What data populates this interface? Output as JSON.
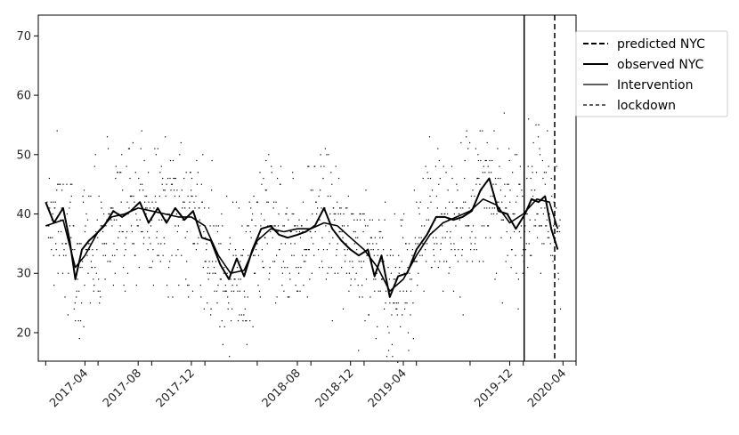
{
  "chart_data": {
    "type": "line",
    "title": "",
    "xlabel": "",
    "ylabel": "",
    "xlim": [
      "2016-12-15",
      "2020-05-01"
    ],
    "ylim": [
      15.2,
      73.5
    ],
    "grid": false,
    "legend_position": "outside-right-top",
    "x_ticks": [
      "2017-04",
      "2017-08",
      "2017-12",
      "2018-08",
      "2018-12",
      "2019-04",
      "2019-12",
      "2020-04"
    ],
    "y_ticks": [
      20,
      30,
      40,
      50,
      60,
      70
    ],
    "vertical_lines": [
      {
        "name": "Intervention",
        "date": "2020-01-03",
        "style": "solid"
      },
      {
        "name": "lockdown",
        "date": "2020-03-13",
        "style": "dashed"
      }
    ],
    "series": [
      {
        "name": "observed NYC",
        "style": "solid-thick",
        "x": [
          "2017-01-01",
          "2017-01-20",
          "2017-02-10",
          "2017-02-25",
          "2017-03-10",
          "2017-03-25",
          "2017-04-10",
          "2017-04-25",
          "2017-05-15",
          "2017-06-05",
          "2017-06-25",
          "2017-07-15",
          "2017-08-05",
          "2017-08-25",
          "2017-09-15",
          "2017-10-05",
          "2017-10-25",
          "2017-11-15",
          "2017-12-05",
          "2017-12-25",
          "2018-01-15",
          "2018-02-05",
          "2018-02-25",
          "2018-03-15",
          "2018-04-01",
          "2018-04-20",
          "2018-05-10",
          "2018-06-01",
          "2018-06-20",
          "2018-07-10",
          "2018-08-01",
          "2018-08-20",
          "2018-09-10",
          "2018-10-01",
          "2018-10-20",
          "2018-11-10",
          "2018-12-01",
          "2018-12-20",
          "2019-01-10",
          "2019-01-25",
          "2019-02-10",
          "2019-03-01",
          "2019-03-20",
          "2019-04-10",
          "2019-05-01",
          "2019-05-25",
          "2019-06-15",
          "2019-07-05",
          "2019-07-25",
          "2019-08-15",
          "2019-09-05",
          "2019-09-25",
          "2019-10-15",
          "2019-11-05",
          "2019-11-25",
          "2019-12-15",
          "2020-01-05",
          "2020-01-20",
          "2020-02-05",
          "2020-02-20",
          "2020-03-05",
          "2020-03-20"
        ],
        "values": [
          42,
          38.5,
          41,
          35.5,
          29,
          34,
          35.5,
          36.5,
          38,
          40.5,
          39.5,
          40.5,
          42,
          38.5,
          41,
          38.5,
          41,
          39,
          40.5,
          36,
          35.5,
          31.5,
          29,
          32.5,
          29.5,
          34,
          37.5,
          38,
          36.5,
          36,
          36.5,
          37,
          38,
          41,
          37.5,
          35.5,
          34,
          33,
          34,
          29.5,
          33,
          26,
          29.5,
          30,
          34,
          36.5,
          39.5,
          39.5,
          39,
          39.5,
          40.5,
          44,
          46,
          40.5,
          40,
          37.5,
          40,
          42.5,
          42,
          43,
          37.5,
          34
        ]
      },
      {
        "name": "predicted NYC",
        "style": "solid-medium",
        "x": [
          "2017-01-01",
          "2017-02-10",
          "2017-03-10",
          "2017-04-01",
          "2017-05-01",
          "2017-06-01",
          "2017-07-01",
          "2017-08-01",
          "2017-09-01",
          "2017-10-01",
          "2017-11-01",
          "2017-12-01",
          "2018-01-01",
          "2018-02-01",
          "2018-03-01",
          "2018-04-01",
          "2018-05-01",
          "2018-06-01",
          "2018-07-01",
          "2018-08-01",
          "2018-09-01",
          "2018-10-01",
          "2018-11-01",
          "2018-12-01",
          "2019-01-01",
          "2019-02-01",
          "2019-03-01",
          "2019-04-01",
          "2019-05-01",
          "2019-06-01",
          "2019-07-01",
          "2019-08-01",
          "2019-09-01",
          "2019-10-01",
          "2019-11-01",
          "2019-12-01",
          "2020-01-01",
          "2020-02-01",
          "2020-03-01",
          "2020-03-20"
        ],
        "values": [
          38,
          39,
          31,
          33,
          37,
          39.5,
          40,
          41,
          40.5,
          40,
          39.5,
          39.5,
          38,
          33,
          30,
          30.5,
          35.5,
          37.5,
          37,
          37.5,
          37.5,
          38.5,
          38,
          36,
          34,
          31,
          27,
          29,
          33,
          36.5,
          38.5,
          39.5,
          40.5,
          42.5,
          41.5,
          38.5,
          40,
          42.5,
          42,
          37.5
        ]
      }
    ],
    "scatter": {
      "name": "daily observations",
      "x_range": [
        "2017-01-01",
        "2020-03-25"
      ],
      "values_note_free": true
    }
  },
  "legend": {
    "items": [
      {
        "label": "predicted NYC",
        "style": "dashed-thick"
      },
      {
        "label": "observed NYC",
        "style": "solid-thick"
      },
      {
        "label": "Intervention",
        "style": "solid-thin"
      },
      {
        "label": "lockdown",
        "style": "dashed-thin"
      }
    ]
  }
}
